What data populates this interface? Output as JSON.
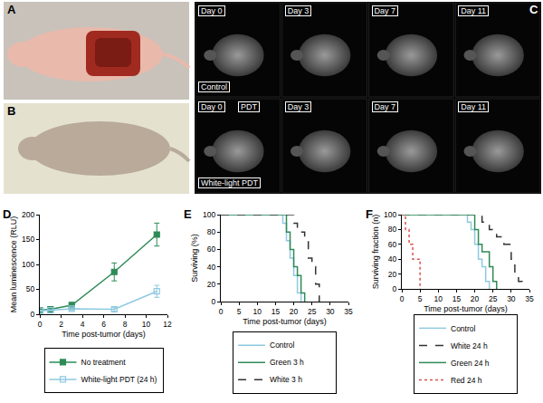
{
  "images": {
    "A": {
      "label": "A"
    },
    "B": {
      "label": "B"
    },
    "C": {
      "label": "C",
      "days": [
        "Day 0",
        "Day 3",
        "Day 7",
        "Day 11"
      ],
      "rows": [
        {
          "label": "Control"
        },
        {
          "label": "White-light PDT",
          "tag": "PDT"
        }
      ]
    }
  },
  "chart_data": [
    {
      "panel_label": "D",
      "type": "line",
      "x_label": "Time post-tumor (days)",
      "y_label": "Mean luminescence (RLU)",
      "x": [
        0,
        1,
        3,
        7,
        11
      ],
      "xlim": [
        0,
        12
      ],
      "xticks": [
        0,
        2,
        4,
        6,
        8,
        10,
        12
      ],
      "ylim": [
        0,
        200
      ],
      "yticks": [
        0,
        50,
        100,
        150,
        200
      ],
      "grid": false,
      "legend": "bottom",
      "series": [
        {
          "name": "No treatment",
          "color": "#2e8b57",
          "marker": "square",
          "line_style": "solid",
          "values": [
            8,
            10,
            18,
            85,
            160
          ],
          "errors": [
            1,
            2,
            6,
            18,
            23
          ]
        },
        {
          "name": "White-light PDT (24 h)",
          "color": "#8fc9e0",
          "marker": "square-open",
          "line_style": "solid",
          "values": [
            7,
            8,
            11,
            10,
            46
          ],
          "errors": [
            1,
            1,
            3,
            4,
            12
          ]
        }
      ]
    },
    {
      "panel_label": "E",
      "type": "step",
      "x_label": "Time post-tumor (days)",
      "y_label": "Surviving (%)",
      "xlim": [
        0,
        35
      ],
      "xticks": [
        0,
        5,
        10,
        15,
        20,
        25,
        30,
        35
      ],
      "ylim": [
        0,
        100
      ],
      "yticks": [
        0,
        20,
        40,
        60,
        80,
        100
      ],
      "grid": false,
      "legend": "bottom",
      "series": [
        {
          "name": "Control",
          "color": "#8fc9e0",
          "line_style": "solid",
          "x": [
            0,
            17,
            18,
            19,
            20,
            21,
            22
          ],
          "values": [
            100,
            90,
            70,
            50,
            30,
            10,
            0
          ]
        },
        {
          "name": "Green 3 h",
          "color": "#2e8b57",
          "line_style": "solid",
          "x": [
            0,
            18,
            19,
            20,
            21,
            22,
            23
          ],
          "values": [
            100,
            80,
            60,
            40,
            30,
            10,
            0
          ]
        },
        {
          "name": "White 3 h",
          "color": "#333333",
          "line_style": "dashed",
          "x": [
            0,
            20,
            21,
            23,
            24,
            25,
            26,
            27
          ],
          "values": [
            100,
            90,
            80,
            70,
            50,
            40,
            20,
            0
          ]
        }
      ]
    },
    {
      "panel_label": "F",
      "type": "step",
      "x_label": "Time post-tumor (days)",
      "y_label": "Surviving fraction (n)",
      "xlim": [
        0,
        35
      ],
      "xticks": [
        0,
        5,
        10,
        15,
        20,
        25,
        30,
        35
      ],
      "ylim": [
        0,
        100
      ],
      "yticks": [
        0,
        20,
        40,
        60,
        80,
        100
      ],
      "grid": false,
      "legend": "bottom",
      "series": [
        {
          "name": "Control",
          "color": "#8fc9e0",
          "line_style": "solid",
          "x": [
            0,
            18,
            19,
            20,
            21,
            22,
            23,
            24
          ],
          "values": [
            100,
            90,
            80,
            60,
            40,
            30,
            10,
            0
          ]
        },
        {
          "name": "White 24 h",
          "color": "#333333",
          "line_style": "dashed",
          "x": [
            0,
            22,
            24,
            26,
            28,
            30,
            31,
            32,
            33
          ],
          "values": [
            100,
            90,
            80,
            70,
            60,
            40,
            20,
            10,
            0
          ]
        },
        {
          "name": "Green 24 h",
          "color": "#2e8b57",
          "line_style": "solid",
          "x": [
            0,
            20,
            21,
            22,
            24,
            25,
            26
          ],
          "values": [
            100,
            80,
            60,
            50,
            30,
            10,
            0
          ]
        },
        {
          "name": "Red 24 h",
          "color": "#d9534f",
          "line_style": "dotted",
          "x": [
            0,
            1,
            2,
            3,
            4,
            5
          ],
          "values": [
            100,
            80,
            60,
            40,
            40,
            0
          ]
        }
      ]
    }
  ]
}
